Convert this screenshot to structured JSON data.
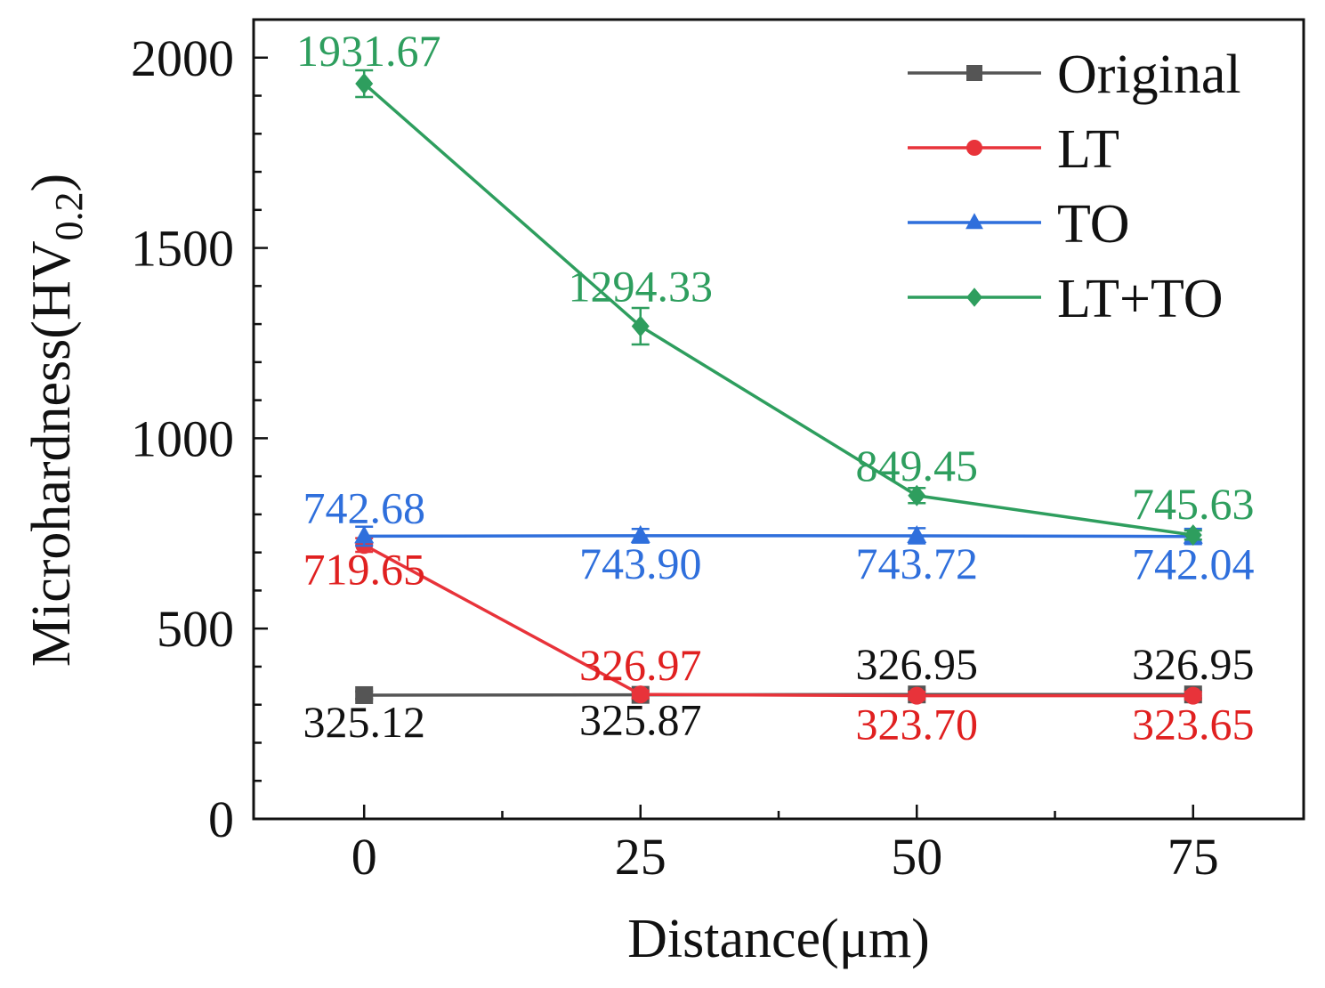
{
  "chart_data": {
    "type": "line",
    "title": "",
    "xlabel": "Distance(μm)",
    "ylabel": {
      "main": "Microhardness(HV",
      "subscript": "0.2",
      "close": ")"
    },
    "x": [
      0,
      25,
      50,
      75
    ],
    "x_ticks": [
      "0",
      "25",
      "50",
      "75"
    ],
    "y_ticks": [
      "0",
      "500",
      "1000",
      "1500",
      "2000"
    ],
    "xlim": [
      -10,
      85
    ],
    "ylim": [
      0,
      2100
    ],
    "legend_position": "top-right",
    "series": [
      {
        "name": "Original",
        "color": "#555555",
        "label_color": "#111111",
        "marker": "square",
        "values": [
          325.12,
          325.87,
          326.95,
          326.95
        ],
        "labels": [
          "325.12",
          "325.87",
          "326.95",
          "326.95"
        ],
        "errors": [
          10,
          10,
          10,
          10
        ]
      },
      {
        "name": "LT",
        "color": "#e8333a",
        "label_color": "#e02020",
        "marker": "circle",
        "values": [
          719.65,
          326.97,
          323.7,
          323.65
        ],
        "labels": [
          "719.65",
          "326.97",
          "323.70",
          "323.65"
        ],
        "errors": [
          18,
          10,
          10,
          10
        ]
      },
      {
        "name": "TO",
        "color": "#2f6fdc",
        "label_color": "#2f6fdc",
        "marker": "triangle",
        "values": [
          742.68,
          743.9,
          743.72,
          742.04
        ],
        "labels": [
          "742.68",
          "743.90",
          "743.72",
          "742.04"
        ],
        "errors": [
          25,
          18,
          20,
          20
        ]
      },
      {
        "name": "LT+TO",
        "color": "#2e9e5e",
        "label_color": "#2e9e5e",
        "marker": "diamond",
        "values": [
          1931.67,
          1294.33,
          849.45,
          745.63
        ],
        "labels": [
          "1931.67",
          "1294.33",
          "849.45",
          "745.63"
        ],
        "errors": [
          35,
          48,
          20,
          12
        ]
      }
    ]
  }
}
